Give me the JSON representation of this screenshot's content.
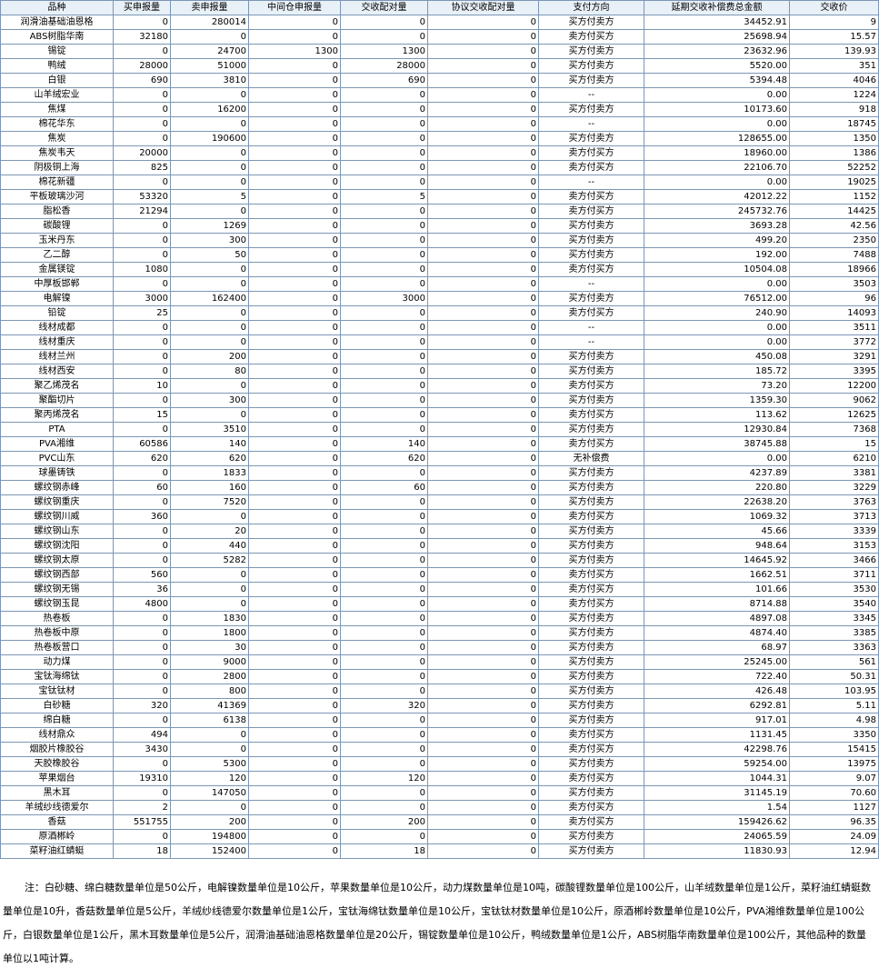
{
  "headers": [
    "品种",
    "买申报量",
    "卖申报量",
    "中间仓申报量",
    "交收配对量",
    "协议交收配对量",
    "支付方向",
    "延期交收补偿费总金额",
    "交收价"
  ],
  "rows": [
    [
      "润滑油基础油恩格",
      "0",
      "280014",
      "0",
      "0",
      "0",
      "买方付卖方",
      "34452.91",
      "9"
    ],
    [
      "ABS树脂华南",
      "32180",
      "0",
      "0",
      "0",
      "0",
      "卖方付买方",
      "25698.94",
      "15.57"
    ],
    [
      "锡锭",
      "0",
      "24700",
      "1300",
      "1300",
      "0",
      "买方付卖方",
      "23632.96",
      "139.93"
    ],
    [
      "鸭绒",
      "28000",
      "51000",
      "0",
      "28000",
      "0",
      "买方付卖方",
      "5520.00",
      "351"
    ],
    [
      "白银",
      "690",
      "3810",
      "0",
      "690",
      "0",
      "买方付卖方",
      "5394.48",
      "4046"
    ],
    [
      "山羊绒宏业",
      "0",
      "0",
      "0",
      "0",
      "0",
      "--",
      "0.00",
      "1224"
    ],
    [
      "焦煤",
      "0",
      "16200",
      "0",
      "0",
      "0",
      "买方付卖方",
      "10173.60",
      "918"
    ],
    [
      "棉花华东",
      "0",
      "0",
      "0",
      "0",
      "0",
      "--",
      "0.00",
      "18745"
    ],
    [
      "焦炭",
      "0",
      "190600",
      "0",
      "0",
      "0",
      "买方付卖方",
      "128655.00",
      "1350"
    ],
    [
      "焦炭韦天",
      "20000",
      "0",
      "0",
      "0",
      "0",
      "卖方付买方",
      "18960.00",
      "1386"
    ],
    [
      "阴极铜上海",
      "825",
      "0",
      "0",
      "0",
      "0",
      "卖方付买方",
      "22106.70",
      "52252"
    ],
    [
      "棉花新疆",
      "0",
      "0",
      "0",
      "0",
      "0",
      "--",
      "0.00",
      "19025"
    ],
    [
      "平板玻璃沙河",
      "53320",
      "5",
      "0",
      "5",
      "0",
      "卖方付买方",
      "42012.22",
      "1152"
    ],
    [
      "脂松香",
      "21294",
      "0",
      "0",
      "0",
      "0",
      "卖方付买方",
      "245732.76",
      "14425"
    ],
    [
      "碳酸锂",
      "0",
      "1269",
      "0",
      "0",
      "0",
      "买方付卖方",
      "3693.28",
      "42.56"
    ],
    [
      "玉米丹东",
      "0",
      "300",
      "0",
      "0",
      "0",
      "买方付卖方",
      "499.20",
      "2350"
    ],
    [
      "乙二醇",
      "0",
      "50",
      "0",
      "0",
      "0",
      "买方付卖方",
      "192.00",
      "7488"
    ],
    [
      "金属镁锭",
      "1080",
      "0",
      "0",
      "0",
      "0",
      "卖方付买方",
      "10504.08",
      "18966"
    ],
    [
      "中厚板邯郸",
      "0",
      "0",
      "0",
      "0",
      "0",
      "--",
      "0.00",
      "3503"
    ],
    [
      "电解镍",
      "3000",
      "162400",
      "0",
      "3000",
      "0",
      "买方付卖方",
      "76512.00",
      "96"
    ],
    [
      "铅锭",
      "25",
      "0",
      "0",
      "0",
      "0",
      "卖方付买方",
      "240.90",
      "14093"
    ],
    [
      "线材成都",
      "0",
      "0",
      "0",
      "0",
      "0",
      "--",
      "0.00",
      "3511"
    ],
    [
      "线材重庆",
      "0",
      "0",
      "0",
      "0",
      "0",
      "--",
      "0.00",
      "3772"
    ],
    [
      "线材兰州",
      "0",
      "200",
      "0",
      "0",
      "0",
      "买方付卖方",
      "450.08",
      "3291"
    ],
    [
      "线材西安",
      "0",
      "80",
      "0",
      "0",
      "0",
      "买方付卖方",
      "185.72",
      "3395"
    ],
    [
      "聚乙烯茂名",
      "10",
      "0",
      "0",
      "0",
      "0",
      "卖方付买方",
      "73.20",
      "12200"
    ],
    [
      "聚酯切片",
      "0",
      "300",
      "0",
      "0",
      "0",
      "买方付卖方",
      "1359.30",
      "9062"
    ],
    [
      "聚丙烯茂名",
      "15",
      "0",
      "0",
      "0",
      "0",
      "卖方付买方",
      "113.62",
      "12625"
    ],
    [
      "PTA",
      "0",
      "3510",
      "0",
      "0",
      "0",
      "买方付卖方",
      "12930.84",
      "7368"
    ],
    [
      "PVA湘维",
      "60586",
      "140",
      "0",
      "140",
      "0",
      "卖方付买方",
      "38745.88",
      "15"
    ],
    [
      "PVC山东",
      "620",
      "620",
      "0",
      "620",
      "0",
      "无补偿费",
      "0.00",
      "6210"
    ],
    [
      "球墨铸铁",
      "0",
      "1833",
      "0",
      "0",
      "0",
      "买方付卖方",
      "4237.89",
      "3381"
    ],
    [
      "螺纹钢赤峰",
      "60",
      "160",
      "0",
      "60",
      "0",
      "买方付卖方",
      "220.80",
      "3229"
    ],
    [
      "螺纹钢重庆",
      "0",
      "7520",
      "0",
      "0",
      "0",
      "买方付卖方",
      "22638.20",
      "3763"
    ],
    [
      "螺纹钢川威",
      "360",
      "0",
      "0",
      "0",
      "0",
      "卖方付买方",
      "1069.32",
      "3713"
    ],
    [
      "螺纹钢山东",
      "0",
      "20",
      "0",
      "0",
      "0",
      "买方付卖方",
      "45.66",
      "3339"
    ],
    [
      "螺纹钢沈阳",
      "0",
      "440",
      "0",
      "0",
      "0",
      "买方付卖方",
      "948.64",
      "3153"
    ],
    [
      "螺纹钢太原",
      "0",
      "5282",
      "0",
      "0",
      "0",
      "买方付卖方",
      "14645.92",
      "3466"
    ],
    [
      "螺纹钢西部",
      "560",
      "0",
      "0",
      "0",
      "0",
      "卖方付买方",
      "1662.51",
      "3711"
    ],
    [
      "螺纹钢无锡",
      "36",
      "0",
      "0",
      "0",
      "0",
      "卖方付买方",
      "101.66",
      "3530"
    ],
    [
      "螺纹钢玉昆",
      "4800",
      "0",
      "0",
      "0",
      "0",
      "卖方付买方",
      "8714.88",
      "3540"
    ],
    [
      "热卷板",
      "0",
      "1830",
      "0",
      "0",
      "0",
      "买方付卖方",
      "4897.08",
      "3345"
    ],
    [
      "热卷板中原",
      "0",
      "1800",
      "0",
      "0",
      "0",
      "买方付卖方",
      "4874.40",
      "3385"
    ],
    [
      "热卷板营口",
      "0",
      "30",
      "0",
      "0",
      "0",
      "买方付卖方",
      "68.97",
      "3363"
    ],
    [
      "动力煤",
      "0",
      "9000",
      "0",
      "0",
      "0",
      "买方付卖方",
      "25245.00",
      "561"
    ],
    [
      "宝钛海绵钛",
      "0",
      "2800",
      "0",
      "0",
      "0",
      "买方付卖方",
      "722.40",
      "50.31"
    ],
    [
      "宝钛钛材",
      "0",
      "800",
      "0",
      "0",
      "0",
      "买方付卖方",
      "426.48",
      "103.95"
    ],
    [
      "白砂糖",
      "320",
      "41369",
      "0",
      "320",
      "0",
      "买方付卖方",
      "6292.81",
      "5.11"
    ],
    [
      "绵白糖",
      "0",
      "6138",
      "0",
      "0",
      "0",
      "买方付卖方",
      "917.01",
      "4.98"
    ],
    [
      "线材鼎众",
      "494",
      "0",
      "0",
      "0",
      "0",
      "卖方付买方",
      "1131.45",
      "3350"
    ],
    [
      "烟胶片橡胶谷",
      "3430",
      "0",
      "0",
      "0",
      "0",
      "卖方付买方",
      "42298.76",
      "15415"
    ],
    [
      "天胶橡胶谷",
      "0",
      "5300",
      "0",
      "0",
      "0",
      "买方付卖方",
      "59254.00",
      "13975"
    ],
    [
      "苹果烟台",
      "19310",
      "120",
      "0",
      "120",
      "0",
      "卖方付买方",
      "1044.31",
      "9.07"
    ],
    [
      "黑木耳",
      "0",
      "147050",
      "0",
      "0",
      "0",
      "买方付卖方",
      "31145.19",
      "70.60"
    ],
    [
      "羊绒纱线德爱尔",
      "2",
      "0",
      "0",
      "0",
      "0",
      "卖方付买方",
      "1.54",
      "1127"
    ],
    [
      "香菇",
      "551755",
      "200",
      "0",
      "200",
      "0",
      "卖方付买方",
      "159426.62",
      "96.35"
    ],
    [
      "原酒郴岭",
      "0",
      "194800",
      "0",
      "0",
      "0",
      "买方付卖方",
      "24065.59",
      "24.09"
    ],
    [
      "菜籽油红蜻蜓",
      "18",
      "152400",
      "0",
      "18",
      "0",
      "买方付卖方",
      "11830.93",
      "12.94"
    ]
  ],
  "note": "注：白砂糖、绵白糖数量单位是50公斤，电解镍数量单位是10公斤，苹果数量单位是10公斤，动力煤数量单位是10吨，碳酸锂数量单位是100公斤，山羊绒数量单位是1公斤，菜籽油红蜻蜓数量单位是10升，香菇数量单位是5公斤，羊绒纱线德爱尔数量单位是1公斤，宝钛海绵钛数量单位是10公斤，宝钛钛材数量单位是10公斤，原酒郴岭数量单位是10公斤，PVA湘维数量单位是100公斤，白银数量单位是1公斤，黑木耳数量单位是5公斤，润滑油基础油恩格数量单位是20公斤，锡锭数量单位是10公斤，鸭绒数量单位是1公斤，ABS树脂华南数量单位是100公斤，其他品种的数量单位以1吨计算。"
}
